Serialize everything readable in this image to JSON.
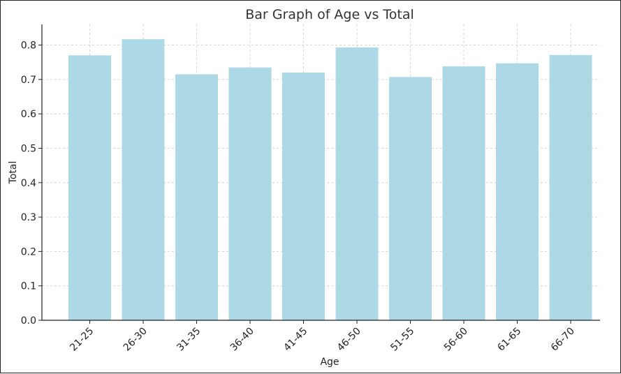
{
  "chart_data": {
    "type": "bar",
    "title": "Bar Graph of Age vs Total",
    "xlabel": "Age",
    "ylabel": "Total",
    "categories": [
      "21-25",
      "26-30",
      "31-35",
      "36-40",
      "41-45",
      "46-50",
      "51-55",
      "56-60",
      "61-65",
      "66-70"
    ],
    "values": [
      0.77,
      0.817,
      0.715,
      0.735,
      0.72,
      0.793,
      0.707,
      0.738,
      0.747,
      0.771
    ],
    "ylim": [
      0,
      0.86
    ],
    "yticks": [
      0.0,
      0.1,
      0.2,
      0.3,
      0.4,
      0.5,
      0.6,
      0.7,
      0.8
    ],
    "ytick_labels": [
      "0.0",
      "0.1",
      "0.2",
      "0.3",
      "0.4",
      "0.5",
      "0.6",
      "0.7",
      "0.8"
    ],
    "grid": true,
    "bar_color": "#add8e6",
    "grid_color": "#cccccc"
  }
}
